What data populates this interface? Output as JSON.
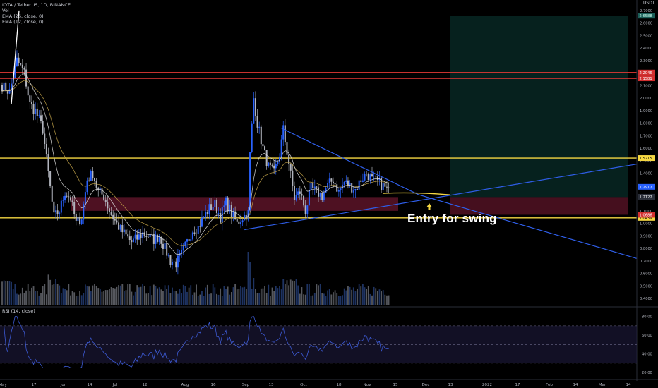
{
  "header": {
    "symbol_line": "IOTA / TetherUS, 1D, BINANCE",
    "indicators": [
      "Vol",
      "EMA (26, close, 0)",
      "EMA (12, close, 0)"
    ],
    "unit_label": "USDT"
  },
  "annotation": {
    "text": "Entry for swing"
  },
  "rsi": {
    "label": "RSI (14, close)"
  },
  "colors": {
    "background": "#000000",
    "up": "#2962ff",
    "down": "#b2b5be",
    "resistance_red": "#e53935",
    "support_yellow": "#f5d742",
    "trendline_blue": "#2f5ee8",
    "ema_slow": "#c5a64a",
    "ema_fast": "#e0e0e0",
    "target_zone": "#0b3d36",
    "entry_zone": "#5c1428",
    "rsi_line": "#3d5bd6",
    "price_tag_last": "#2962ff"
  },
  "chart_data": {
    "type": "candlestick",
    "title": "IOTA / TetherUS, 1D, BINANCE",
    "ylim": [
      0.35,
      2.75
    ],
    "yticks": [
      0.4,
      0.5,
      0.6,
      0.7,
      0.8,
      0.9,
      1.0,
      1.1,
      1.2,
      1.3,
      1.4,
      1.5,
      1.6,
      1.7,
      1.8,
      1.9,
      2.0,
      2.1,
      2.2,
      2.3,
      2.4,
      2.5,
      2.6,
      2.7
    ],
    "xticks": [
      "May",
      "17",
      "Jun",
      "14",
      "Jul",
      "12",
      "Aug",
      "16",
      "Sep",
      "13",
      "Oct",
      "18",
      "Nov",
      "15",
      "Dec",
      "13",
      "2022",
      "17",
      "Feb",
      "14",
      "Mar",
      "14"
    ],
    "price_anchors": [
      [
        0,
        2.1
      ],
      [
        4,
        2.05
      ],
      [
        8,
        2.3
      ],
      [
        12,
        2.2
      ],
      [
        15,
        1.95
      ],
      [
        18,
        1.9
      ],
      [
        22,
        1.75
      ],
      [
        25,
        1.4
      ],
      [
        28,
        1.05
      ],
      [
        31,
        1.1
      ],
      [
        34,
        1.25
      ],
      [
        37,
        1.2
      ],
      [
        40,
        1.0
      ],
      [
        43,
        1.05
      ],
      [
        46,
        1.35
      ],
      [
        49,
        1.4
      ],
      [
        52,
        1.25
      ],
      [
        55,
        1.22
      ],
      [
        58,
        1.1
      ],
      [
        61,
        1.02
      ],
      [
        64,
        0.95
      ],
      [
        67,
        0.9
      ],
      [
        70,
        0.85
      ],
      [
        73,
        0.88
      ],
      [
        76,
        0.92
      ],
      [
        79,
        0.9
      ],
      [
        82,
        0.87
      ],
      [
        85,
        0.9
      ],
      [
        88,
        0.8
      ],
      [
        91,
        0.7
      ],
      [
        94,
        0.68
      ],
      [
        97,
        0.75
      ],
      [
        100,
        0.85
      ],
      [
        103,
        0.95
      ],
      [
        106,
        0.97
      ],
      [
        109,
        1.05
      ],
      [
        112,
        1.12
      ],
      [
        115,
        1.15
      ],
      [
        118,
        1.05
      ],
      [
        121,
        1.17
      ],
      [
        124,
        1.08
      ],
      [
        127,
        1.0
      ],
      [
        130,
        1.05
      ],
      [
        133,
        1.08
      ],
      [
        134,
        1.55
      ],
      [
        136,
        2.0
      ],
      [
        138,
        1.8
      ],
      [
        141,
        1.6
      ],
      [
        144,
        1.45
      ],
      [
        147,
        1.4
      ],
      [
        150,
        1.55
      ],
      [
        152,
        1.75
      ],
      [
        155,
        1.48
      ],
      [
        158,
        1.2
      ],
      [
        161,
        1.25
      ],
      [
        164,
        1.1
      ],
      [
        167,
        1.28
      ],
      [
        170,
        1.25
      ],
      [
        173,
        1.22
      ],
      [
        176,
        1.3
      ],
      [
        179,
        1.35
      ],
      [
        182,
        1.25
      ],
      [
        185,
        1.33
      ],
      [
        188,
        1.3
      ],
      [
        191,
        1.27
      ],
      [
        194,
        1.35
      ],
      [
        197,
        1.4
      ],
      [
        200,
        1.35
      ],
      [
        203,
        1.33
      ],
      [
        206,
        1.3
      ],
      [
        209,
        1.25
      ]
    ],
    "price_levels": [
      {
        "name": "resistance-upper",
        "value": 2.2046,
        "color": "red",
        "label": "2.2046"
      },
      {
        "name": "resistance-lower",
        "value": 2.1581,
        "color": "red",
        "label": "2.1581"
      },
      {
        "name": "support-upper",
        "value": 1.5215,
        "color": "yellow",
        "label": "1.5215"
      },
      {
        "name": "support-lower",
        "value": 1.0439,
        "color": "yellow",
        "label": "1.0439"
      }
    ],
    "axis_tags": [
      {
        "label": "2.6588",
        "value": 2.6588,
        "style": "teal"
      },
      {
        "label": "2.2046",
        "value": 2.2046,
        "style": "red"
      },
      {
        "label": "2.1581",
        "value": 2.1581,
        "style": "red"
      },
      {
        "label": "1.5215",
        "value": 1.5215,
        "style": "yellow"
      },
      {
        "label": "1.2917",
        "value": 1.2917,
        "style": "blue"
      },
      {
        "label": "1.2122",
        "value": 1.2122,
        "style": "gray"
      },
      {
        "label": "1.0439",
        "value": 1.0439,
        "style": "yellow"
      },
      {
        "label": "1.0686",
        "value": 1.0686,
        "style": "red"
      }
    ],
    "target_zone": {
      "low": 1.21,
      "high": 2.6588
    },
    "entry_zone": {
      "low": 1.0686,
      "high": 1.21
    },
    "trendlines": [
      {
        "name": "upper-descending",
        "points": [
          [
            151,
            1.76
          ],
          [
            225,
            1.23
          ],
          [
            350,
            0.69
          ]
        ]
      },
      {
        "name": "lower-ascending",
        "points": [
          [
            131,
            0.95
          ],
          [
            350,
            1.49
          ]
        ]
      }
    ],
    "rsi": {
      "ylim": [
        20,
        82
      ],
      "yticks": [
        20,
        40,
        60,
        80
      ],
      "bands": [
        30,
        70
      ],
      "mid": 50
    }
  }
}
